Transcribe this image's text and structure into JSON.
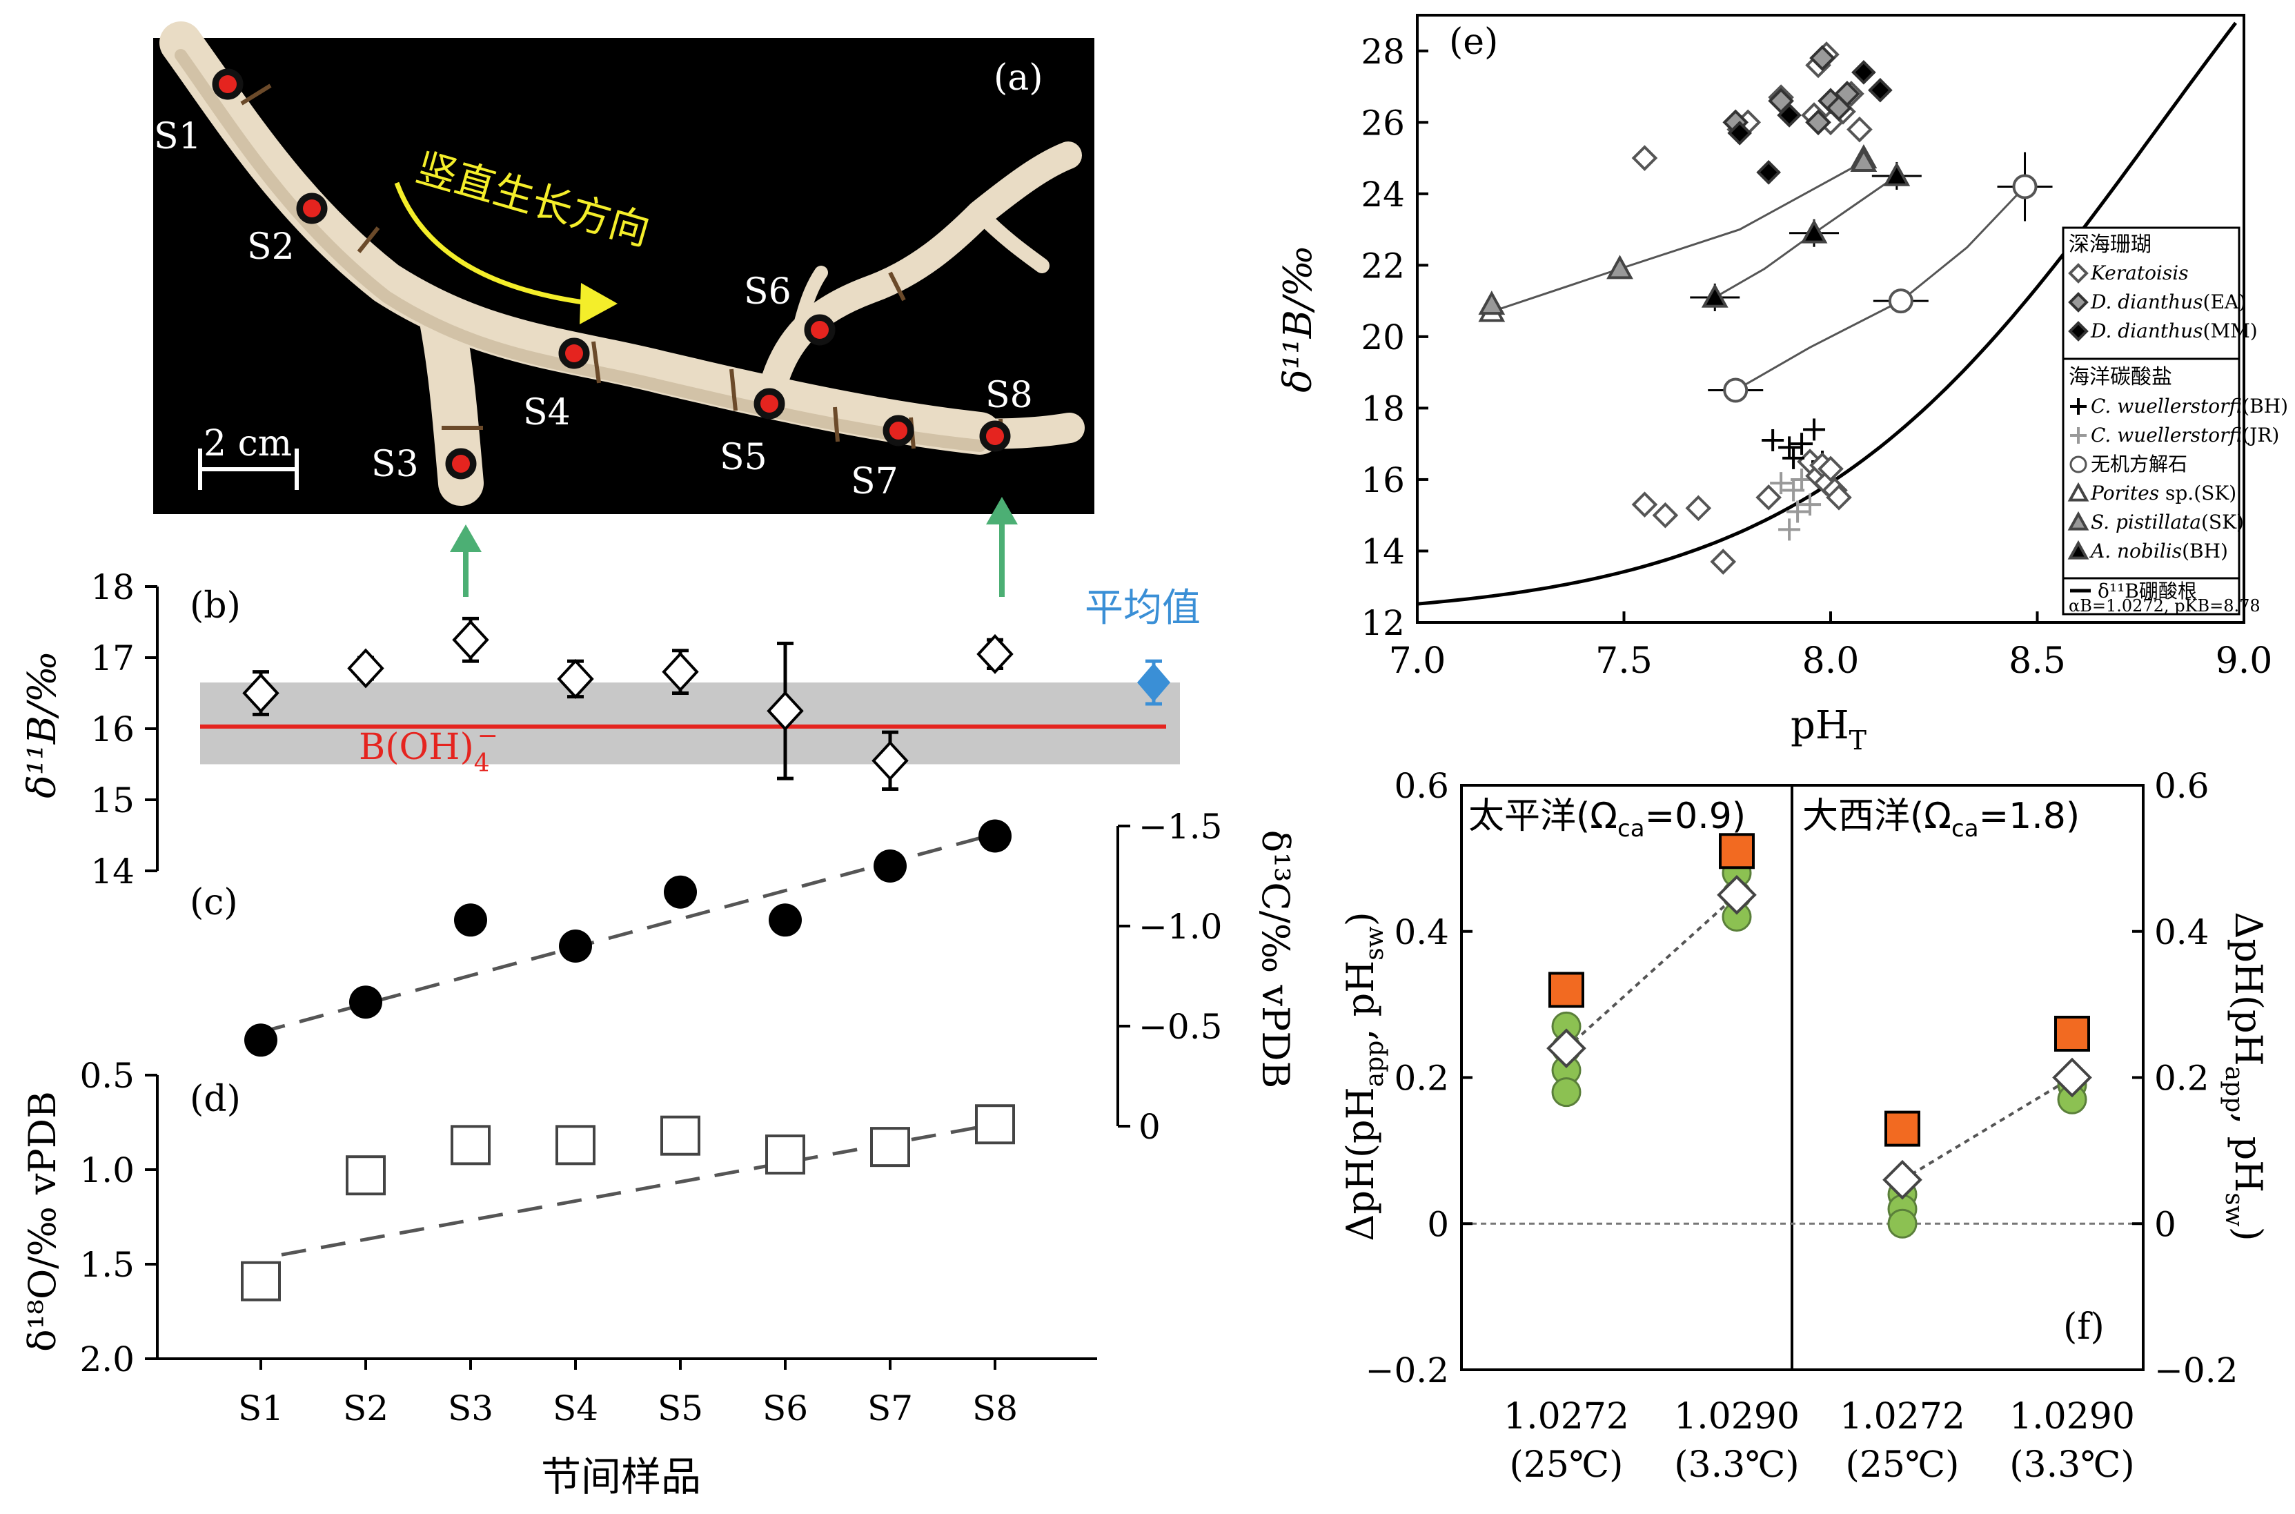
{
  "colors": {
    "red": "#e5241f",
    "blue": "#3a8fd6",
    "yellow": "#f4ee2a",
    "green": "#4caf74",
    "orange": "#f26a21",
    "lime": "#8cc152",
    "band": "#c8c8c8"
  },
  "panel_a": {
    "label": "(a)",
    "arrow_text": "竖直生长方向",
    "scale": "2 cm",
    "samples": [
      "S1",
      "S2",
      "S3",
      "S4",
      "S5",
      "S6",
      "S7",
      "S8"
    ]
  },
  "chart_data": [
    {
      "panel": "b",
      "type": "scatter",
      "label": "(b)",
      "categories": [
        "S1",
        "S2",
        "S3",
        "S4",
        "S5",
        "S6",
        "S7",
        "S8"
      ],
      "values": [
        16.5,
        16.85,
        17.25,
        16.7,
        16.8,
        16.25,
        15.55,
        17.05
      ],
      "errors": [
        0.3,
        0.15,
        0.3,
        0.25,
        0.3,
        0.95,
        0.4,
        0.2
      ],
      "mean": {
        "label": "平均值",
        "value": 16.65,
        "error": 0.3
      },
      "borate": {
        "value": 16.03,
        "label": "B(OH)",
        "label_sub": "4",
        "label_sup": "−"
      },
      "band": [
        15.5,
        16.65
      ],
      "ylabel": "δ¹¹B/‰",
      "ylim": [
        14,
        18
      ],
      "yticks": [
        "14",
        "15",
        "16",
        "17",
        "18"
      ]
    },
    {
      "panel": "c",
      "type": "scatter",
      "label": "(c)",
      "categories": [
        "S1",
        "S2",
        "S3",
        "S4",
        "S5",
        "S6",
        "S7",
        "S8"
      ],
      "values": [
        -0.43,
        -0.62,
        -1.03,
        -0.9,
        -1.17,
        -1.03,
        -1.3,
        -1.45
      ],
      "trend": [
        -0.47,
        -1.46
      ],
      "ylabel": "δ¹³C/‰ vPDB",
      "ylim": [
        0,
        -1.5
      ],
      "yticks": [
        "0",
        "−0.5",
        "−1.0",
        "−1.5"
      ]
    },
    {
      "panel": "d",
      "type": "scatter",
      "label": "(d)",
      "categories": [
        "S1",
        "S2",
        "S3",
        "S4",
        "S5",
        "S6",
        "S7",
        "S8"
      ],
      "values": [
        1.59,
        1.03,
        0.87,
        0.87,
        0.82,
        0.92,
        0.88,
        0.76
      ],
      "trend": [
        1.45,
        0.76
      ],
      "xlabel": "节间样品",
      "ylabel": "δ¹⁸O/‰ vPDB",
      "ylim": [
        2.0,
        0.5
      ],
      "yticks": [
        "0.5",
        "1.0",
        "1.5",
        "2.0"
      ]
    },
    {
      "panel": "e",
      "type": "scatter",
      "label": "(e)",
      "xlabel": "pH",
      "xlabel_sub": "T",
      "ylabel": "δ¹¹B/‰",
      "xlim": [
        7.0,
        9.0
      ],
      "ylim": [
        12,
        29
      ],
      "xticks": [
        "7.0",
        "7.5",
        "8.0",
        "8.5",
        "9.0"
      ],
      "yticks": [
        "12",
        "14",
        "16",
        "18",
        "20",
        "22",
        "24",
        "26",
        "28"
      ],
      "borate_curve": {
        "alpha": 1.0272,
        "pKB": 8.78,
        "sw": 39.61
      },
      "legend": {
        "group1": "深海珊瑚",
        "group2": "海洋碳酸盐",
        "items1": [
          {
            "marker": "diamond-open",
            "text": "Keratoisis",
            "italic": true
          },
          {
            "marker": "diamond-gray",
            "text": "D. dianthus",
            "suffix": "(EA)",
            "italic": true
          },
          {
            "marker": "diamond-black",
            "text": "D. dianthus",
            "suffix": "(MM)",
            "italic": true
          }
        ],
        "items2": [
          {
            "marker": "plus-black",
            "text": "C. wuellerstorfi",
            "suffix": "(BH)",
            "italic": true
          },
          {
            "marker": "plus-gray",
            "text": "C. wuellerstorfi",
            "suffix": "(JR)",
            "italic": true
          },
          {
            "marker": "circle-open",
            "text": "无机方解石",
            "suffix": "",
            "italic": false
          },
          {
            "marker": "triangle-open",
            "text": "Porites",
            "suffix": " sp.(SK)",
            "italic": true
          },
          {
            "marker": "triangle-gray",
            "text": "S. pistillata",
            "suffix": "(SK)",
            "italic": true
          },
          {
            "marker": "triangle-black",
            "text": "A. nobilis",
            "suffix": "(BH)",
            "italic": true
          }
        ],
        "line_text": "δ¹¹B硼酸根",
        "params": "αB=1.0272, pKB=8.78"
      },
      "series": [
        {
          "name": "Keratoisis",
          "x": [
            7.55,
            7.6,
            7.68,
            7.74,
            7.85,
            7.95
          ],
          "y": [
            15.3,
            15.0,
            15.2,
            13.7,
            15.5,
            16.5
          ]
        },
        {
          "name": "Keratoisis (upper)",
          "x": [
            7.55,
            7.78,
            7.8,
            7.88,
            7.96,
            7.97,
            7.99,
            8.0,
            8.03,
            8.05,
            8.07
          ],
          "y": [
            25.0,
            25.8,
            26.0,
            26.7,
            26.2,
            27.6,
            27.9,
            26.0,
            26.3,
            26.8,
            25.8
          ]
        },
        {
          "name": "D. dianthus (EA)",
          "x": [
            7.77,
            7.88,
            7.97,
            7.98,
            8.0,
            8.02,
            8.04
          ],
          "y": [
            26.0,
            26.6,
            26.0,
            27.8,
            26.6,
            26.4,
            26.8
          ]
        },
        {
          "name": "D. dianthus (MM)",
          "x": [
            7.78,
            7.85,
            7.9,
            8.08,
            8.12
          ],
          "y": [
            25.7,
            24.6,
            26.2,
            27.4,
            26.9
          ]
        },
        {
          "name": "C. wuellerstorfi (BH)",
          "x": [
            7.86,
            7.9,
            7.93,
            7.96,
            7.98,
            7.91
          ],
          "y": [
            17.1,
            16.9,
            17.0,
            17.4,
            16.5,
            16.6
          ]
        },
        {
          "name": "C. wuellerstorfi (JR)",
          "x": [
            7.88,
            7.91,
            7.93,
            7.95,
            7.9,
            7.92
          ],
          "y": [
            15.9,
            15.7,
            16.0,
            15.3,
            14.6,
            15.1
          ]
        },
        {
          "name": "Inorganic calcite",
          "x": [
            7.77,
            8.17,
            8.47
          ],
          "y": [
            18.5,
            21.0,
            24.2
          ],
          "fit": [
            [
              7.77,
              18.5
            ],
            [
              7.95,
              19.7
            ],
            [
              8.17,
              21.0
            ],
            [
              8.33,
              22.5
            ],
            [
              8.47,
              24.2
            ]
          ]
        },
        {
          "name": "Porites sp. (SK)",
          "x": [
            7.18,
            8.08
          ],
          "y": [
            20.7,
            25.0
          ]
        },
        {
          "name": "S. pistillata (SK)",
          "x": [
            7.18,
            7.49,
            8.08
          ],
          "y": [
            20.9,
            21.9,
            24.9
          ]
        },
        {
          "name": "A. nobilis (BH)",
          "x": [
            7.72,
            7.96,
            8.16
          ],
          "y": [
            21.1,
            22.9,
            24.5
          ],
          "fit": [
            [
              7.72,
              21.1
            ],
            [
              7.84,
              21.9
            ],
            [
              7.96,
              22.9
            ],
            [
              8.16,
              24.5
            ]
          ]
        },
        {
          "name": "S. pistillata fit",
          "fit": [
            [
              7.18,
              20.7
            ],
            [
              7.49,
              21.9
            ],
            [
              7.78,
              23.0
            ],
            [
              8.08,
              24.9
            ]
          ]
        }
      ],
      "diamond_cluster": {
        "x": [
          7.97,
          7.99,
          8.01,
          8.02,
          7.98,
          8.0
        ],
        "y": [
          16.1,
          15.9,
          15.7,
          15.5,
          16.4,
          16.3
        ]
      }
    },
    {
      "panel": "f",
      "type": "scatter",
      "label": "(f)",
      "ylabel": "ΔpH(pH",
      "ylabel_sub1": "app",
      "ylabel_mid": ", pH",
      "ylabel_sub2": "sw",
      "ylabel_end": ")",
      "ylim": [
        -0.2,
        0.6
      ],
      "yticks": [
        "−0.2",
        "0",
        "0.2",
        "0.4",
        "0.6"
      ],
      "left_title": {
        "pre": "太平洋(Ω",
        "sub": "ca",
        "post": "=0.9)"
      },
      "right_title": {
        "pre": "大西洋(Ω",
        "sub": "ca",
        "post": "=1.8)"
      },
      "xticks": [
        {
          "a": "1.0272",
          "b": "(25℃)"
        },
        {
          "a": "1.0290",
          "b": "(3.3℃)"
        },
        {
          "a": "1.0272",
          "b": "(25℃)"
        },
        {
          "a": "1.0290",
          "b": "(3.3℃)"
        }
      ],
      "orange": [
        0.32,
        0.51,
        0.13,
        0.26
      ],
      "white": [
        0.24,
        0.45,
        0.06,
        0.2
      ],
      "greens": [
        [
          0.27,
          0.24,
          0.21,
          0.18
        ],
        [
          0.48,
          0.45,
          0.42
        ],
        [
          0.04,
          0.02,
          0.0
        ],
        [
          0.19,
          0.17
        ]
      ]
    }
  ]
}
